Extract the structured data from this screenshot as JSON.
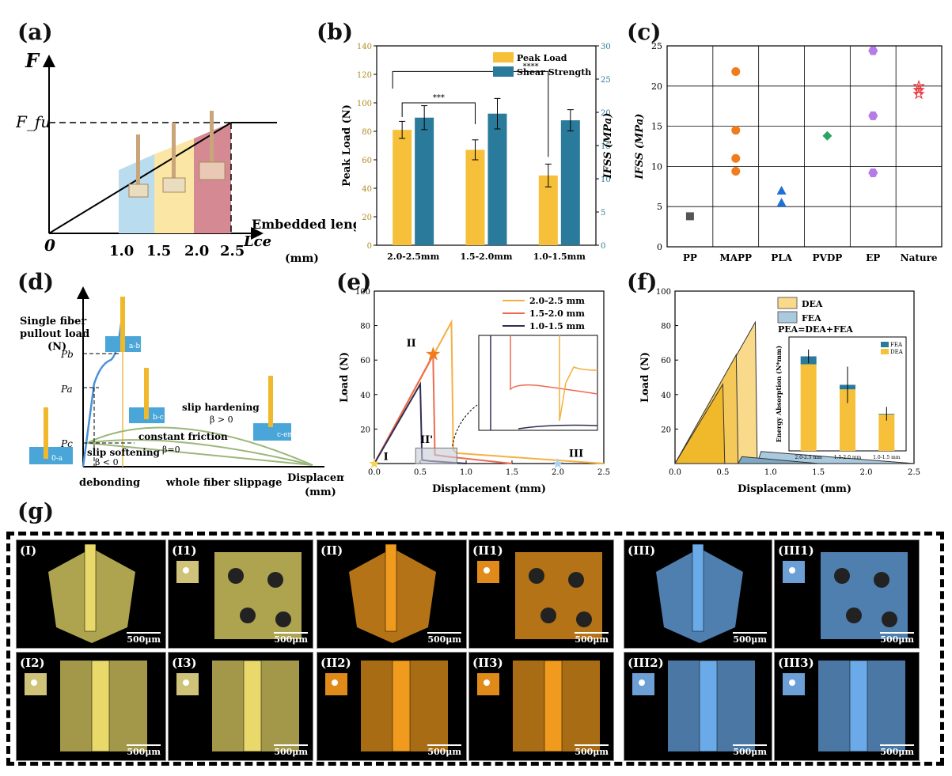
{
  "panels": {
    "a": "(a)",
    "b": "(b)",
    "c": "(c)",
    "d": "(d)",
    "e": "(e)",
    "f": "(f)",
    "g": "(g)"
  },
  "panel_a": {
    "y_axis": "F",
    "ffu": "F_fu",
    "origin": "0",
    "x_axis": "Embedded length",
    "lce": "Lce",
    "unit": "(mm)",
    "ticks": [
      "1.0",
      "1.5",
      "2.0",
      "2.5"
    ]
  },
  "chart_data": [
    {
      "type": "bar",
      "panel": "b",
      "categories": [
        "2.0-2.5mm",
        "1.5-2.0mm",
        "1.0-1.5mm"
      ],
      "series": [
        {
          "name": "Peak Load",
          "axis": "left",
          "values": [
            81,
            67,
            49
          ],
          "errors": [
            6,
            7,
            8
          ],
          "color": "#f6c03a"
        },
        {
          "name": "Shear Strength",
          "axis": "right",
          "values": [
            19.2,
            19.8,
            18.8
          ],
          "errors": [
            1.8,
            2.3,
            1.6
          ],
          "color": "#2a7b9b"
        }
      ],
      "ylabel": "Peak Load (N)",
      "ylabel_right": "IFSS (MPa)",
      "ylim": [
        0,
        140
      ],
      "ylim_right": [
        0,
        30
      ],
      "yticks": [
        "0",
        "20",
        "40",
        "60",
        "80",
        "100",
        "120",
        "140"
      ],
      "yticks_right": [
        "0",
        "5",
        "10",
        "15",
        "20",
        "25",
        "30"
      ],
      "annotations": [
        "***",
        "****"
      ]
    },
    {
      "type": "scatter",
      "panel": "c",
      "categories": [
        "PP",
        "MAPP",
        "PLA",
        "PVDP",
        "EP",
        "Nature"
      ],
      "series": [
        {
          "name": "PP",
          "values": [
            3.8
          ],
          "color": "#555555",
          "marker": "square"
        },
        {
          "name": "MAPP",
          "values": [
            21.8,
            14.5,
            11,
            9.4
          ],
          "color": "#f07c1e",
          "marker": "circle"
        },
        {
          "name": "PLA",
          "values": [
            7,
            5.5
          ],
          "color": "#1f6fd6",
          "marker": "triangle"
        },
        {
          "name": "PVDP",
          "values": [
            13.8
          ],
          "color": "#2aa364",
          "marker": "diamond"
        },
        {
          "name": "EP",
          "values": [
            24.4,
            16.3,
            9.2
          ],
          "color": "#b57be6",
          "marker": "hexagon"
        },
        {
          "name": "Nature",
          "values": [
            20,
            19.5,
            19
          ],
          "color": "#e8232a",
          "marker": "star"
        }
      ],
      "ylabel": "IFSS (MPa)",
      "ylim": [
        0,
        25
      ],
      "yticks": [
        "0",
        "5",
        "10",
        "15",
        "20",
        "25"
      ]
    },
    {
      "type": "line",
      "panel": "e",
      "series": [
        {
          "name": "2.0-2.5 mm",
          "x": [
            0,
            0.84,
            0.86,
            0.9,
            2.5
          ],
          "y": [
            0,
            82,
            8,
            6,
            0
          ],
          "color": "#f4b042"
        },
        {
          "name": "1.5-2.0 mm",
          "x": [
            0,
            0.64,
            0.66,
            0.8,
            1.5
          ],
          "y": [
            0,
            63,
            5,
            4,
            0
          ],
          "color": "#ee6a50"
        },
        {
          "name": "1.0-1.5 mm",
          "x": [
            0,
            0.5,
            0.52,
            0.6,
            1.0
          ],
          "y": [
            0,
            46,
            2,
            1.5,
            0
          ],
          "color": "#2f2f55"
        }
      ],
      "xlabel": "Displacement (mm)",
      "ylabel": "Load (N)",
      "xlim": [
        0,
        2.5
      ],
      "ylim": [
        0,
        100
      ],
      "xticks": [
        "0.0",
        "0.5",
        "1.0",
        "1.5",
        "2.0",
        "2.5"
      ],
      "yticks": [
        "20",
        "40",
        "60",
        "80",
        "100"
      ],
      "annotations": [
        "I",
        "II",
        "II'",
        "III"
      ]
    },
    {
      "type": "area",
      "panel": "f",
      "series": [
        {
          "name": "DEA",
          "color": "#f9d98a"
        },
        {
          "name": "FEA",
          "color": "#a9c9df"
        }
      ],
      "note": "PEA=DEA+FEA",
      "xlabel": "Displacement (mm)",
      "ylabel": "Load (N)",
      "xlim": [
        0,
        2.5
      ],
      "ylim": [
        0,
        100
      ],
      "xticks": [
        "0.0",
        "0.5",
        "1.0",
        "1.5",
        "2.0",
        "2.5"
      ],
      "yticks": [
        "20",
        "40",
        "60",
        "80",
        "100"
      ],
      "inset": {
        "type": "bar",
        "categories": [
          "2.0-2.5 mm",
          "1.5-2.0 mm",
          "1.0-1.5 mm"
        ],
        "series": [
          {
            "name": "DEA",
            "values": [
              38,
              27,
              16
            ],
            "color": "#f6c03a"
          },
          {
            "name": "FEA",
            "values": [
              3.5,
              2,
              0.3
            ],
            "color": "#2a7b9b"
          }
        ],
        "errors": [
          3,
          8,
          3
        ],
        "ylabel": "Energy Absorption (N*mm)"
      }
    }
  ],
  "panel_d": {
    "ylabel_1": "Single fiber",
    "ylabel_2": "pullout load",
    "ylabel_3": "(N)",
    "pb": "Pb",
    "pa": "Pa",
    "pc": "Pc",
    "slip_hardening": "slip hardening",
    "beta_pos": "β > 0",
    "constant_friction": "constant friction",
    "beta_zero": "β=0",
    "slip_softening": "slip softening",
    "beta_neg": "β < 0",
    "debonding": "debonding",
    "whole": "whole fiber slippage",
    "xlabel_1": "Displacement",
    "xlabel_2": "(mm)",
    "box_labels": [
      "a-b",
      "b-c",
      "0-a",
      "c-end"
    ]
  },
  "panel_g": {
    "scale": "500μm",
    "tiles": [
      "(I)",
      "(I1)",
      "(II)",
      "(II1)",
      "(III)",
      "(III1)",
      "(I2)",
      "(I3)",
      "(II2)",
      "(II3)",
      "(III2)",
      "(III3)"
    ]
  }
}
